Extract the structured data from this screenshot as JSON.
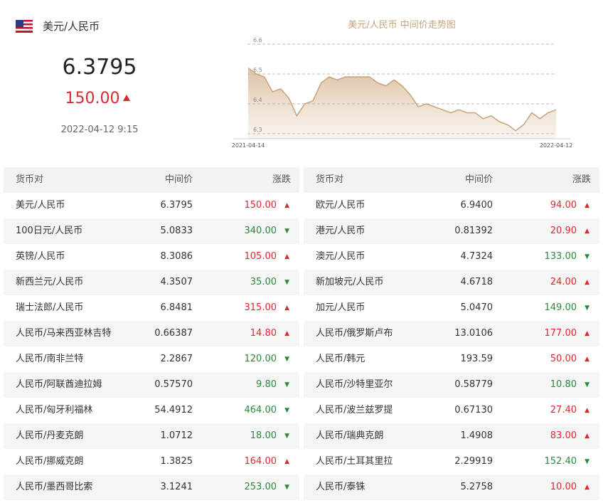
{
  "header": {
    "pair": "美元/人民币",
    "price": "6.3795",
    "change": "150.00",
    "direction": "up",
    "time": "2022-04-12 9:15"
  },
  "chart_data": {
    "type": "line",
    "title": "美元/人民币 中间价走势图",
    "color": "#c8a27a",
    "categories": [
      "2021-04-14",
      null,
      null,
      null,
      null,
      null,
      null,
      null,
      null,
      null,
      null,
      null,
      null,
      null,
      null,
      null,
      null,
      null,
      null,
      null,
      null,
      null,
      null,
      null,
      null,
      null,
      null,
      null,
      null,
      null,
      null,
      null,
      null,
      null,
      null,
      null,
      null,
      null,
      "2022-04-12"
    ],
    "values": [
      6.52,
      6.5,
      6.49,
      6.44,
      6.45,
      6.42,
      6.36,
      6.4,
      6.41,
      6.47,
      6.49,
      6.48,
      6.49,
      6.49,
      6.49,
      6.49,
      6.47,
      6.46,
      6.48,
      6.46,
      6.43,
      6.39,
      6.4,
      6.39,
      6.38,
      6.37,
      6.38,
      6.37,
      6.37,
      6.35,
      6.36,
      6.34,
      6.33,
      6.31,
      6.33,
      6.37,
      6.35,
      6.37,
      6.38
    ],
    "ylim": [
      6.283,
      6.6
    ],
    "yticks": [
      6.6,
      6.5,
      6.4,
      6.3
    ],
    "grid": true
  },
  "tables": [
    {
      "headers": [
        "货币对",
        "中间价",
        "涨跌"
      ],
      "rows": [
        [
          "美元/人民币",
          "6.3795",
          "150.00",
          "up"
        ],
        [
          "100日元/人民币",
          "5.0833",
          "340.00",
          "down"
        ],
        [
          "英镑/人民币",
          "8.3086",
          "105.00",
          "up"
        ],
        [
          "新西兰元/人民币",
          "4.3507",
          "35.00",
          "down"
        ],
        [
          "瑞士法郎/人民币",
          "6.8481",
          "315.00",
          "up"
        ],
        [
          "人民币/马来西亚林吉特",
          "0.66387",
          "14.80",
          "up"
        ],
        [
          "人民币/南非兰特",
          "2.2867",
          "120.00",
          "down"
        ],
        [
          "人民币/阿联酋迪拉姆",
          "0.57570",
          "9.80",
          "down"
        ],
        [
          "人民币/匈牙利福林",
          "54.4912",
          "464.00",
          "down"
        ],
        [
          "人民币/丹麦克朗",
          "1.0712",
          "18.00",
          "down"
        ],
        [
          "人民币/挪威克朗",
          "1.3825",
          "164.00",
          "up"
        ],
        [
          "人民币/墨西哥比索",
          "3.1241",
          "253.00",
          "down"
        ]
      ]
    },
    {
      "headers": [
        "货币对",
        "中间价",
        "涨跌"
      ],
      "rows": [
        [
          "欧元/人民币",
          "6.9400",
          "94.00",
          "up"
        ],
        [
          "港元/人民币",
          "0.81392",
          "20.90",
          "up"
        ],
        [
          "澳元/人民币",
          "4.7324",
          "133.00",
          "down"
        ],
        [
          "新加坡元/人民币",
          "4.6718",
          "24.00",
          "up"
        ],
        [
          "加元/人民币",
          "5.0470",
          "149.00",
          "down"
        ],
        [
          "人民币/俄罗斯卢布",
          "13.0106",
          "177.00",
          "up"
        ],
        [
          "人民币/韩元",
          "193.59",
          "50.00",
          "up"
        ],
        [
          "人民币/沙特里亚尔",
          "0.58779",
          "10.80",
          "down"
        ],
        [
          "人民币/波兰兹罗提",
          "0.67130",
          "27.40",
          "up"
        ],
        [
          "人民币/瑞典克朗",
          "1.4908",
          "83.00",
          "up"
        ],
        [
          "人民币/土耳其里拉",
          "2.29919",
          "152.40",
          "down"
        ],
        [
          "人民币/泰铢",
          "5.2758",
          "10.00",
          "up"
        ]
      ]
    }
  ]
}
